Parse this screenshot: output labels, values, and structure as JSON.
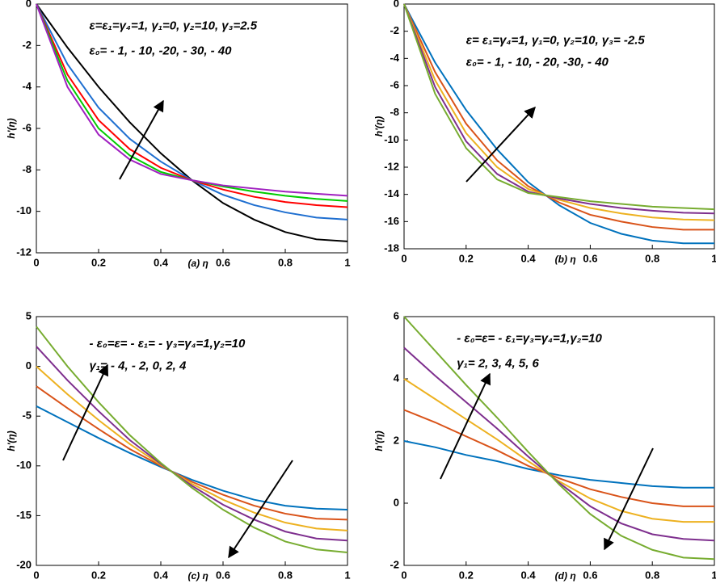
{
  "chart_data": [
    {
      "type": "line",
      "xlabel": "(a) η",
      "ylabel": "h'(η)",
      "annotations": [
        "ε=ε₁=γ₄=1, γ₁=0, γ₂=10, γ₃=2.5",
        "ε₀= - 1, - 10, -20, - 30, - 40"
      ],
      "x": [
        0,
        0.1,
        0.2,
        0.3,
        0.4,
        0.5,
        0.6,
        0.7,
        0.8,
        0.9,
        1
      ],
      "xlim": [
        0,
        1
      ],
      "xticks": [
        0,
        0.2,
        0.4,
        0.6,
        0.8,
        1
      ],
      "ylim": [
        -12,
        0
      ],
      "yticks": [
        0,
        -2,
        -4,
        -6,
        -8,
        -10,
        -12
      ],
      "series": [
        {
          "color": "#000000",
          "values": [
            0,
            -2.1,
            -4.0,
            -5.7,
            -7.2,
            -8.5,
            -9.6,
            -10.4,
            -11.0,
            -11.35,
            -11.45
          ]
        },
        {
          "color": "#1f6fd0",
          "values": [
            0,
            -2.9,
            -5.0,
            -6.5,
            -7.6,
            -8.5,
            -9.2,
            -9.7,
            -10.05,
            -10.3,
            -10.4
          ]
        },
        {
          "color": "#ff0000",
          "values": [
            0,
            -3.4,
            -5.6,
            -7.0,
            -7.9,
            -8.5,
            -8.95,
            -9.3,
            -9.55,
            -9.7,
            -9.8
          ]
        },
        {
          "color": "#00cc00",
          "values": [
            0,
            -3.7,
            -6.0,
            -7.3,
            -8.1,
            -8.5,
            -8.8,
            -9.05,
            -9.25,
            -9.4,
            -9.5
          ]
        },
        {
          "color": "#a020c0",
          "values": [
            0,
            -4.0,
            -6.3,
            -7.5,
            -8.2,
            -8.5,
            -8.75,
            -8.9,
            -9.05,
            -9.15,
            -9.25
          ]
        }
      ]
    },
    {
      "type": "line",
      "xlabel": "(b) η",
      "ylabel": "h'(η)",
      "annotations": [
        "ε= ε₁=γ₄=1, γ₁=0, γ₂=10, γ₃= -2.5",
        "ε₀= - 1, - 10, - 20, -30, - 40"
      ],
      "x": [
        0,
        0.1,
        0.2,
        0.3,
        0.4,
        0.5,
        0.6,
        0.7,
        0.8,
        0.9,
        1
      ],
      "xlim": [
        0,
        1
      ],
      "xticks": [
        0,
        0.2,
        0.4,
        0.6,
        0.8,
        1
      ],
      "ylim": [
        -18,
        0
      ],
      "yticks": [
        0,
        -2,
        -4,
        -6,
        -8,
        -10,
        -12,
        -14,
        -16,
        -18
      ],
      "series": [
        {
          "color": "#0072bd",
          "values": [
            0,
            -4.3,
            -7.8,
            -10.7,
            -13.1,
            -14.8,
            -16.1,
            -16.9,
            -17.4,
            -17.6,
            -17.6
          ]
        },
        {
          "color": "#d95319",
          "values": [
            0,
            -5.0,
            -8.8,
            -11.5,
            -13.4,
            -14.6,
            -15.5,
            -16.0,
            -16.4,
            -16.6,
            -16.6
          ]
        },
        {
          "color": "#edb120",
          "values": [
            0,
            -5.6,
            -9.5,
            -12.0,
            -13.6,
            -14.4,
            -15.0,
            -15.4,
            -15.7,
            -15.85,
            -15.9
          ]
        },
        {
          "color": "#7e2f8e",
          "values": [
            0,
            -6.1,
            -10.1,
            -12.5,
            -13.8,
            -14.3,
            -14.7,
            -15.0,
            -15.2,
            -15.35,
            -15.4
          ]
        },
        {
          "color": "#77ac30",
          "values": [
            0,
            -6.6,
            -10.6,
            -12.9,
            -13.9,
            -14.2,
            -14.5,
            -14.7,
            -14.9,
            -15.0,
            -15.1
          ]
        }
      ]
    },
    {
      "type": "line",
      "xlabel": "(c) η",
      "ylabel": "h'(η)",
      "annotations": [
        "- ε₀=ε= - ε₁= - γ₃=γ₄=1,γ₂=10",
        "γ₁= - 4, - 2, 0, 2, 4"
      ],
      "x": [
        0,
        0.1,
        0.2,
        0.3,
        0.4,
        0.5,
        0.6,
        0.7,
        0.8,
        0.9,
        1
      ],
      "xlim": [
        0,
        1
      ],
      "xticks": [
        0,
        0.2,
        0.4,
        0.6,
        0.8,
        1
      ],
      "ylim": [
        -20,
        5
      ],
      "yticks": [
        5,
        0,
        -5,
        -10,
        -15,
        -20
      ],
      "series": [
        {
          "color": "#0072bd",
          "values": [
            -4,
            -5.6,
            -7.2,
            -8.7,
            -10.1,
            -11.4,
            -12.5,
            -13.4,
            -14.0,
            -14.3,
            -14.4
          ]
        },
        {
          "color": "#d95319",
          "values": [
            -2,
            -4.2,
            -6.3,
            -8.3,
            -10.0,
            -11.6,
            -12.9,
            -14.0,
            -14.8,
            -15.3,
            -15.4
          ]
        },
        {
          "color": "#edb120",
          "values": [
            0,
            -2.8,
            -5.4,
            -7.8,
            -9.9,
            -11.8,
            -13.4,
            -14.7,
            -15.7,
            -16.3,
            -16.5
          ]
        },
        {
          "color": "#7e2f8e",
          "values": [
            2,
            -1.4,
            -4.5,
            -7.4,
            -9.8,
            -12.0,
            -13.9,
            -15.4,
            -16.6,
            -17.3,
            -17.5
          ]
        },
        {
          "color": "#77ac30",
          "values": [
            4,
            0,
            -3.6,
            -6.9,
            -9.7,
            -12.2,
            -14.4,
            -16.2,
            -17.6,
            -18.4,
            -18.7
          ]
        }
      ]
    },
    {
      "type": "line",
      "xlabel": "(d) η",
      "ylabel": "h'(η)",
      "annotations": [
        "- ε₀=ε= - ε₁=γ₃=γ₄=1,γ₂=10",
        "γ₁= 2, 3, 4, 5, 6"
      ],
      "x": [
        0,
        0.1,
        0.2,
        0.3,
        0.4,
        0.5,
        0.6,
        0.7,
        0.8,
        0.9,
        1
      ],
      "xlim": [
        0,
        1
      ],
      "xticks": [
        0,
        0.2,
        0.4,
        0.6,
        0.8,
        1
      ],
      "ylim": [
        -2,
        6
      ],
      "yticks": [
        6,
        4,
        2,
        0,
        -2
      ],
      "series": [
        {
          "color": "#0072bd",
          "values": [
            2,
            1.8,
            1.55,
            1.35,
            1.1,
            0.9,
            0.75,
            0.65,
            0.55,
            0.5,
            0.5
          ]
        },
        {
          "color": "#d95319",
          "values": [
            3,
            2.6,
            2.15,
            1.7,
            1.2,
            0.8,
            0.45,
            0.2,
            0.0,
            -0.1,
            -0.1
          ]
        },
        {
          "color": "#edb120",
          "values": [
            4,
            3.35,
            2.7,
            2.05,
            1.35,
            0.7,
            0.15,
            -0.25,
            -0.5,
            -0.6,
            -0.6
          ]
        },
        {
          "color": "#7e2f8e",
          "values": [
            5,
            4.1,
            3.25,
            2.4,
            1.5,
            0.65,
            -0.1,
            -0.65,
            -1.0,
            -1.15,
            -1.2
          ]
        },
        {
          "color": "#77ac30",
          "values": [
            6,
            4.9,
            3.8,
            2.75,
            1.65,
            0.6,
            -0.35,
            -1.05,
            -1.5,
            -1.75,
            -1.8
          ]
        }
      ]
    }
  ]
}
